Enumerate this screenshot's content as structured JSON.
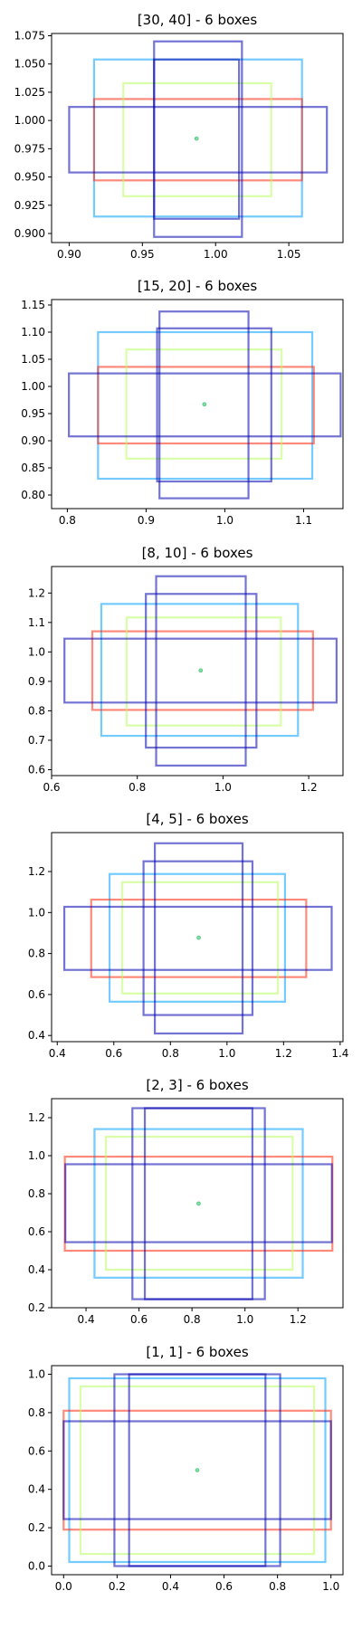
{
  "chart_data": [
    {
      "type": "box-overlay",
      "title": "[30, 40] - 6 boxes",
      "xlim": [
        0.888,
        1.087
      ],
      "ylim": [
        0.892,
        1.077
      ],
      "xticks": [
        0.9,
        0.95,
        1.0,
        1.05
      ],
      "xtick_labels": [
        "0.90",
        "0.95",
        "1.00",
        "1.05"
      ],
      "yticks": [
        0.9,
        0.925,
        0.95,
        0.975,
        1.0,
        1.025,
        1.05,
        1.075
      ],
      "ytick_labels": [
        "0.900",
        "0.925",
        "0.950",
        "0.975",
        "1.000",
        "1.025",
        "1.050",
        "1.075"
      ],
      "center": [
        0.987,
        0.984
      ],
      "boxes": [
        {
          "color": "#00a0ff",
          "x": [
            0.917,
            1.059
          ],
          "y": [
            0.915,
            1.054
          ]
        },
        {
          "color": "#ff2a10",
          "x": [
            0.917,
            1.059
          ],
          "y": [
            0.947,
            1.019
          ]
        },
        {
          "color": "#b8ff60",
          "x": [
            0.937,
            1.038
          ],
          "y": [
            0.933,
            1.033
          ]
        },
        {
          "color": "#0000b0",
          "x": [
            0.9,
            1.076
          ],
          "y": [
            0.954,
            1.012
          ]
        },
        {
          "color": "#0000b0",
          "x": [
            0.958,
            1.018
          ],
          "y": [
            0.897,
            1.07
          ]
        },
        {
          "color": "#0000b0",
          "x": [
            0.958,
            1.016
          ],
          "y": [
            0.913,
            1.054
          ]
        }
      ]
    },
    {
      "type": "box-overlay",
      "title": "[15, 20] - 6 boxes",
      "xlim": [
        0.78,
        1.15
      ],
      "ylim": [
        0.775,
        1.16
      ],
      "xticks": [
        0.8,
        0.9,
        1.0,
        1.1
      ],
      "xtick_labels": [
        "0.8",
        "0.9",
        "1.0",
        "1.1"
      ],
      "yticks": [
        0.8,
        0.85,
        0.9,
        0.95,
        1.0,
        1.05,
        1.1,
        1.15
      ],
      "ytick_labels": [
        "0.80",
        "0.85",
        "0.90",
        "0.95",
        "1.00",
        "1.05",
        "1.10",
        "1.15"
      ],
      "center": [
        0.974,
        0.967
      ],
      "boxes": [
        {
          "color": "#00a0ff",
          "x": [
            0.839,
            1.111
          ],
          "y": [
            0.83,
            1.1
          ]
        },
        {
          "color": "#ff2a10",
          "x": [
            0.839,
            1.113
          ],
          "y": [
            0.895,
            1.036
          ]
        },
        {
          "color": "#b8ff60",
          "x": [
            0.875,
            1.072
          ],
          "y": [
            0.867,
            1.068
          ]
        },
        {
          "color": "#0000b0",
          "x": [
            0.802,
            1.147
          ],
          "y": [
            0.908,
            1.024
          ]
        },
        {
          "color": "#0000b0",
          "x": [
            0.917,
            1.03
          ],
          "y": [
            0.794,
            1.138
          ]
        },
        {
          "color": "#0000b0",
          "x": [
            0.914,
            1.059
          ],
          "y": [
            0.825,
            1.107
          ]
        }
      ]
    },
    {
      "type": "box-overlay",
      "title": "[8, 10] - 6 boxes",
      "xlim": [
        0.6,
        1.28
      ],
      "ylim": [
        0.58,
        1.29
      ],
      "xticks": [
        0.6,
        0.8,
        1.0,
        1.2
      ],
      "xtick_labels": [
        "0.6",
        "0.8",
        "1.0",
        "1.2"
      ],
      "yticks": [
        0.6,
        0.7,
        0.8,
        0.9,
        1.0,
        1.1,
        1.2
      ],
      "ytick_labels": [
        "0.6",
        "0.7",
        "0.8",
        "0.9",
        "1.0",
        "1.1",
        "1.2"
      ],
      "center": [
        0.948,
        0.937
      ],
      "boxes": [
        {
          "color": "#00a0ff",
          "x": [
            0.716,
            1.175
          ],
          "y": [
            0.715,
            1.163
          ]
        },
        {
          "color": "#ff2a10",
          "x": [
            0.695,
            1.21
          ],
          "y": [
            0.803,
            1.07
          ]
        },
        {
          "color": "#b8ff60",
          "x": [
            0.775,
            1.135
          ],
          "y": [
            0.75,
            1.117
          ]
        },
        {
          "color": "#0000b0",
          "x": [
            0.63,
            1.265
          ],
          "y": [
            0.828,
            1.045
          ]
        },
        {
          "color": "#0000b0",
          "x": [
            0.844,
            1.053
          ],
          "y": [
            0.614,
            1.257
          ]
        },
        {
          "color": "#0000b0",
          "x": [
            0.82,
            1.078
          ],
          "y": [
            0.675,
            1.197
          ]
        }
      ]
    },
    {
      "type": "box-overlay",
      "title": "[4, 5] - 6 boxes",
      "xlim": [
        0.38,
        1.41
      ],
      "ylim": [
        0.37,
        1.39
      ],
      "xticks": [
        0.4,
        0.6,
        0.8,
        1.0,
        1.2,
        1.4
      ],
      "xtick_labels": [
        "0.4",
        "0.6",
        "0.8",
        "1.0",
        "1.2",
        "1.4"
      ],
      "yticks": [
        0.4,
        0.6,
        0.8,
        1.0,
        1.2
      ],
      "ytick_labels": [
        "0.4",
        "0.6",
        "0.8",
        "1.0",
        "1.2"
      ],
      "center": [
        0.9,
        0.877
      ],
      "boxes": [
        {
          "color": "#00a0ff",
          "x": [
            0.585,
            1.205
          ],
          "y": [
            0.565,
            1.188
          ]
        },
        {
          "color": "#ff2a10",
          "x": [
            0.52,
            1.28
          ],
          "y": [
            0.685,
            1.063
          ]
        },
        {
          "color": "#b8ff60",
          "x": [
            0.63,
            1.18
          ],
          "y": [
            0.605,
            1.148
          ]
        },
        {
          "color": "#0000b0",
          "x": [
            0.425,
            1.37
          ],
          "y": [
            0.72,
            1.028
          ]
        },
        {
          "color": "#0000b0",
          "x": [
            0.745,
            1.055
          ],
          "y": [
            0.41,
            1.338
          ]
        },
        {
          "color": "#0000b0",
          "x": [
            0.705,
            1.09
          ],
          "y": [
            0.5,
            1.25
          ]
        }
      ]
    },
    {
      "type": "box-overlay",
      "title": "[2, 3] - 6 boxes",
      "xlim": [
        0.27,
        1.37
      ],
      "ylim": [
        0.2,
        1.3
      ],
      "xticks": [
        0.4,
        0.6,
        0.8,
        1.0,
        1.2
      ],
      "xtick_labels": [
        "0.4",
        "0.6",
        "0.8",
        "1.0",
        "1.2"
      ],
      "yticks": [
        0.2,
        0.4,
        0.6,
        0.8,
        1.0,
        1.2
      ],
      "ytick_labels": [
        "0.2",
        "0.4",
        "0.6",
        "0.8",
        "1.0",
        "1.2"
      ],
      "center": [
        0.825,
        0.748
      ],
      "boxes": [
        {
          "color": "#00a0ff",
          "x": [
            0.432,
            1.218
          ],
          "y": [
            0.358,
            1.14
          ]
        },
        {
          "color": "#ff2a10",
          "x": [
            0.32,
            1.33
          ],
          "y": [
            0.5,
            0.995
          ]
        },
        {
          "color": "#b8ff60",
          "x": [
            0.475,
            1.18
          ],
          "y": [
            0.4,
            1.1
          ]
        },
        {
          "color": "#0000b0",
          "x": [
            0.322,
            1.328
          ],
          "y": [
            0.545,
            0.955
          ]
        },
        {
          "color": "#0000b0",
          "x": [
            0.575,
            1.075
          ],
          "y": [
            0.245,
            1.25
          ]
        },
        {
          "color": "#0000b0",
          "x": [
            0.622,
            1.028
          ],
          "y": [
            0.245,
            1.25
          ]
        }
      ]
    },
    {
      "type": "box-overlay",
      "title": "[1, 1] - 6 boxes",
      "xlim": [
        -0.045,
        1.045
      ],
      "ylim": [
        -0.045,
        1.045
      ],
      "xticks": [
        0.0,
        0.2,
        0.4,
        0.6,
        0.8,
        1.0
      ],
      "xtick_labels": [
        "0.0",
        "0.2",
        "0.4",
        "0.6",
        "0.8",
        "1.0"
      ],
      "yticks": [
        0.0,
        0.2,
        0.4,
        0.6,
        0.8,
        1.0
      ],
      "ytick_labels": [
        "0.0",
        "0.2",
        "0.4",
        "0.6",
        "0.8",
        "1.0"
      ],
      "center": [
        0.5,
        0.5
      ],
      "boxes": [
        {
          "color": "#00a0ff",
          "x": [
            0.021,
            0.979
          ],
          "y": [
            0.021,
            0.979
          ]
        },
        {
          "color": "#ff2a10",
          "x": [
            0.0,
            1.0
          ],
          "y": [
            0.19,
            0.81
          ]
        },
        {
          "color": "#b8ff60",
          "x": [
            0.063,
            0.937
          ],
          "y": [
            0.063,
            0.937
          ]
        },
        {
          "color": "#0000b0",
          "x": [
            0.0,
            1.0
          ],
          "y": [
            0.245,
            0.755
          ]
        },
        {
          "color": "#0000b0",
          "x": [
            0.19,
            0.81
          ],
          "y": [
            0.0,
            1.0
          ]
        },
        {
          "color": "#0000b0",
          "x": [
            0.245,
            0.755
          ],
          "y": [
            0.0,
            1.0
          ]
        }
      ]
    }
  ]
}
